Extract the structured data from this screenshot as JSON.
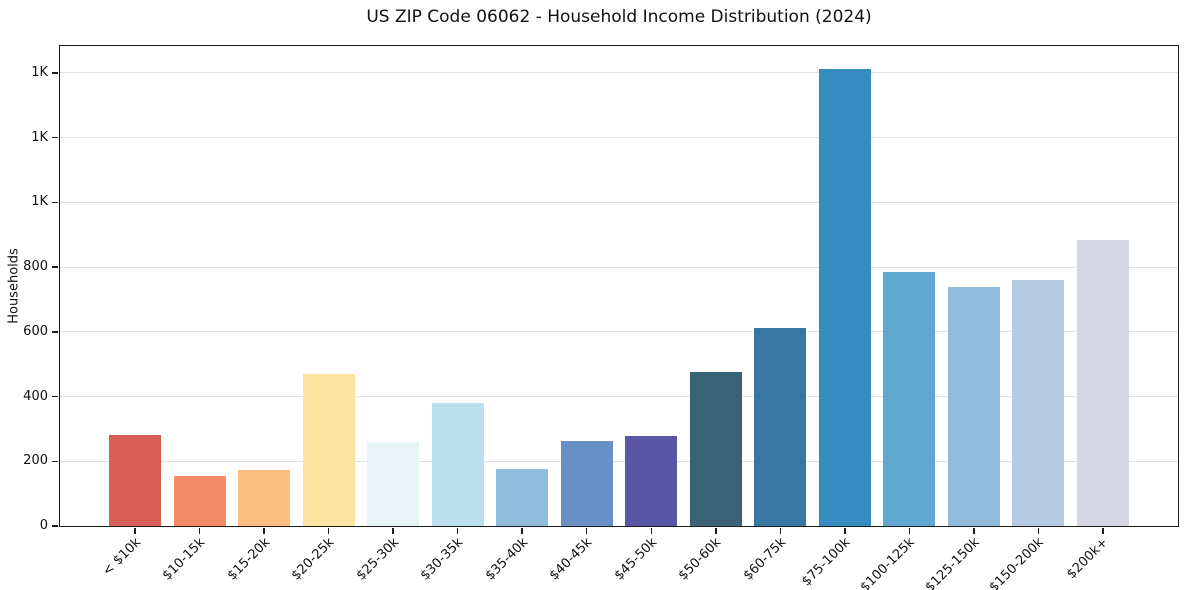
{
  "figure": {
    "title": "US ZIP Code 06062 - Household Income Distribution (2024)",
    "ylabel": "Households"
  },
  "chart_data": {
    "type": "bar",
    "title": "US ZIP Code 06062 - Household Income Distribution (2024)",
    "xlabel": "",
    "ylabel": "Households",
    "categories": [
      "< $10k",
      "$10-15k",
      "$15-20k",
      "$20-25k",
      "$25-30k",
      "$30-35k",
      "$35-40k",
      "$40-45k",
      "$45-50k",
      "$50-60k",
      "$60-75k",
      "$75-100k",
      "$100-125k",
      "$125-150k",
      "$150-200k",
      "$200k+"
    ],
    "values": [
      281,
      153,
      172,
      471,
      260,
      381,
      175,
      262,
      277,
      476,
      611,
      1412,
      785,
      738,
      761,
      884
    ],
    "bar_colors": [
      "#d75f55",
      "#f58a67",
      "#fcbd80",
      "#fde4a0",
      "#e8f3f6",
      "#bbdfeb",
      "#90bddc",
      "#6890c4",
      "#5a57a7",
      "#3a6277",
      "#3878a0",
      "#368cc1",
      "#60a7cd",
      "#92badb",
      "#b6cae1",
      "#d6d8e6"
    ],
    "ylim": [
      0,
      1483
    ],
    "yticks": [
      {
        "value": 0,
        "label": "0"
      },
      {
        "value": 200,
        "label": "200"
      },
      {
        "value": 400,
        "label": "400"
      },
      {
        "value": 600,
        "label": "600"
      },
      {
        "value": 800,
        "label": "800"
      },
      {
        "value": 1000,
        "label": "1K"
      },
      {
        "value": 1200,
        "label": "1K"
      },
      {
        "value": 1400,
        "label": "1K"
      }
    ],
    "grid": "horizontal-only",
    "legend": "none",
    "colors": {
      "background": "#ffffff",
      "grid_line": "#e2e2e2",
      "spine": "#1c1c1c",
      "text": "#111111"
    }
  }
}
